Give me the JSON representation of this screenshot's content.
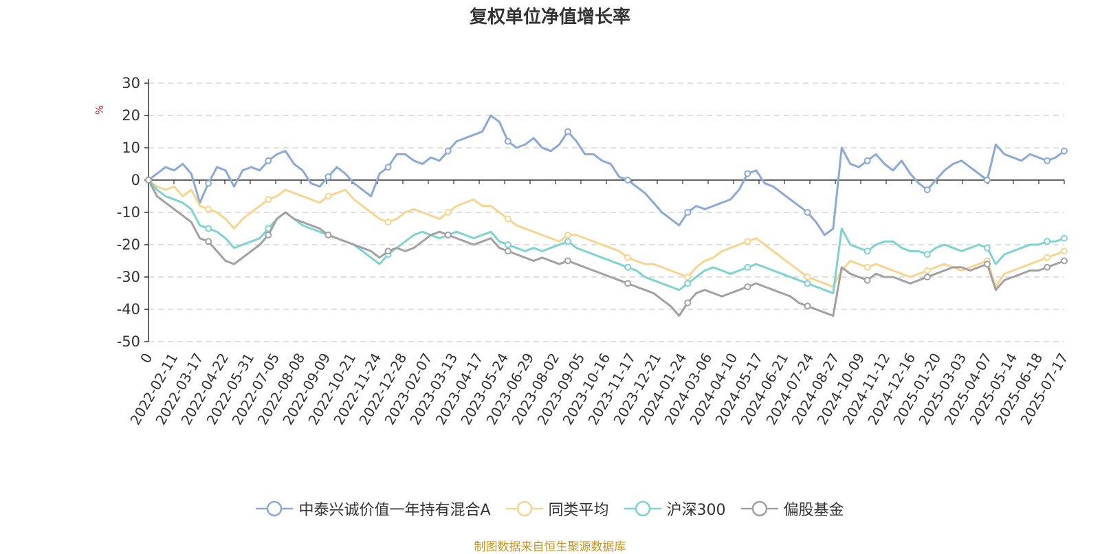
{
  "chart_data": {
    "type": "line",
    "title": "复权单位净值增长率",
    "ylabel": "%",
    "ylim": [
      -50,
      30
    ],
    "yticks": [
      30,
      20,
      10,
      0,
      -10,
      -20,
      -30,
      -40,
      -50
    ],
    "x_tick_labels": [
      "0",
      "2022-02-11",
      "2022-03-17",
      "2022-04-22",
      "2022-05-31",
      "2022-07-05",
      "2022-08-08",
      "2022-09-09",
      "2022-10-21",
      "2022-11-24",
      "2022-12-28",
      "2023-02-07",
      "2023-03-13",
      "2023-04-17",
      "2023-05-24",
      "2023-06-29",
      "2023-08-02",
      "2023-09-05",
      "2023-10-16",
      "2023-11-17",
      "2023-12-21",
      "2024-01-24",
      "2024-03-06",
      "2024-04-10",
      "2024-05-17",
      "2024-06-21",
      "2024-07-24",
      "2024-08-27",
      "2024-10-09",
      "2024-11-12",
      "2024-12-16",
      "2025-01-20",
      "2025-03-03",
      "2025-04-07",
      "2025-05-14",
      "2025-06-18",
      "2025-07-17"
    ],
    "grid": true,
    "legend_position": "bottom",
    "series": [
      {
        "name": "中泰兴诚价值一年持有混合A",
        "color": "#8aa9d8",
        "values": [
          0,
          2,
          4,
          3,
          5,
          2,
          -7,
          -1,
          4,
          3,
          -2,
          3,
          4,
          3,
          6,
          8,
          9,
          5,
          3,
          -1,
          -2,
          1,
          4,
          2,
          -1,
          -3,
          -5,
          2,
          4,
          8,
          8,
          6,
          5,
          7,
          6,
          9,
          12,
          13,
          14,
          15,
          20,
          18,
          12,
          10,
          11,
          13,
          10,
          9,
          11,
          15,
          12,
          8,
          8,
          6,
          5,
          1,
          0,
          -2,
          -4,
          -7,
          -10,
          -12,
          -14,
          -10,
          -8,
          -9,
          -8,
          -7,
          -6,
          -3,
          2,
          3,
          -1,
          -2,
          -4,
          -6,
          -8,
          -10,
          -13,
          -17,
          -15,
          10,
          5,
          4,
          6,
          8,
          5,
          3,
          6,
          2,
          -1,
          -3,
          0,
          3,
          5,
          6,
          4,
          2,
          0,
          11,
          8,
          7,
          6,
          8,
          7,
          6,
          7,
          9
        ]
      },
      {
        "name": "同类平均",
        "color": "#f9d48e",
        "values": [
          0,
          -2,
          -3,
          -2,
          -5,
          -3,
          -8,
          -9,
          -10,
          -12,
          -15,
          -12,
          -10,
          -8,
          -6,
          -5,
          -3,
          -4,
          -5,
          -6,
          -7,
          -5,
          -4,
          -3,
          -6,
          -8,
          -10,
          -12,
          -13,
          -12,
          -10,
          -9,
          -10,
          -11,
          -12,
          -10,
          -8,
          -7,
          -6,
          -8,
          -8,
          -10,
          -12,
          -14,
          -15,
          -16,
          -17,
          -18,
          -19,
          -17,
          -17,
          -18,
          -19,
          -20,
          -21,
          -22,
          -24,
          -25,
          -26,
          -26,
          -27,
          -28,
          -29,
          -30,
          -27,
          -25,
          -24,
          -22,
          -21,
          -20,
          -19,
          -18,
          -20,
          -22,
          -24,
          -26,
          -28,
          -30,
          -31,
          -32,
          -33,
          -28,
          -25,
          -26,
          -27,
          -26,
          -27,
          -28,
          -29,
          -30,
          -29,
          -28,
          -27,
          -26,
          -27,
          -28,
          -27,
          -26,
          -25,
          -33,
          -29,
          -28,
          -27,
          -26,
          -25,
          -24,
          -23,
          -22
        ]
      },
      {
        "name": "沪深300",
        "color": "#7dd3d1",
        "values": [
          0,
          -3,
          -5,
          -6,
          -7,
          -9,
          -14,
          -15,
          -16,
          -18,
          -21,
          -20,
          -19,
          -18,
          -15,
          -12,
          -10,
          -12,
          -14,
          -15,
          -16,
          -17,
          -18,
          -19,
          -20,
          -22,
          -24,
          -26,
          -23,
          -21,
          -19,
          -17,
          -16,
          -17,
          -18,
          -17,
          -16,
          -17,
          -18,
          -17,
          -16,
          -19,
          -20,
          -21,
          -22,
          -21,
          -22,
          -21,
          -20,
          -19,
          -21,
          -22,
          -23,
          -24,
          -25,
          -26,
          -27,
          -28,
          -30,
          -31,
          -32,
          -33,
          -34,
          -32,
          -30,
          -28,
          -27,
          -28,
          -29,
          -28,
          -27,
          -26,
          -27,
          -28,
          -29,
          -30,
          -31,
          -32,
          -33,
          -34,
          -35,
          -15,
          -20,
          -21,
          -22,
          -20,
          -19,
          -19,
          -21,
          -22,
          -22,
          -23,
          -21,
          -20,
          -21,
          -22,
          -21,
          -20,
          -21,
          -26,
          -23,
          -22,
          -21,
          -20,
          -20,
          -19,
          -19,
          -18
        ]
      },
      {
        "name": "偏股基金",
        "color": "#a1a1a1",
        "values": [
          0,
          -5,
          -7,
          -9,
          -11,
          -13,
          -18,
          -19,
          -22,
          -25,
          -26,
          -24,
          -22,
          -20,
          -17,
          -12,
          -10,
          -12,
          -13,
          -14,
          -15,
          -17,
          -18,
          -19,
          -20,
          -21,
          -22,
          -24,
          -22,
          -21,
          -22,
          -21,
          -19,
          -17,
          -16,
          -17,
          -18,
          -19,
          -20,
          -19,
          -18,
          -21,
          -22,
          -23,
          -24,
          -25,
          -24,
          -25,
          -26,
          -25,
          -26,
          -27,
          -28,
          -29,
          -30,
          -31,
          -32,
          -33,
          -34,
          -35,
          -37,
          -39,
          -42,
          -38,
          -35,
          -34,
          -35,
          -36,
          -35,
          -34,
          -33,
          -32,
          -33,
          -34,
          -35,
          -36,
          -38,
          -39,
          -40,
          -41,
          -42,
          -27,
          -29,
          -30,
          -31,
          -29,
          -30,
          -30,
          -31,
          -32,
          -31,
          -30,
          -29,
          -28,
          -27,
          -27,
          -28,
          -27,
          -26,
          -34,
          -31,
          -30,
          -29,
          -28,
          -28,
          -27,
          -26,
          -25
        ]
      }
    ]
  },
  "source_note": "制图数据来自恒生聚源数据库"
}
